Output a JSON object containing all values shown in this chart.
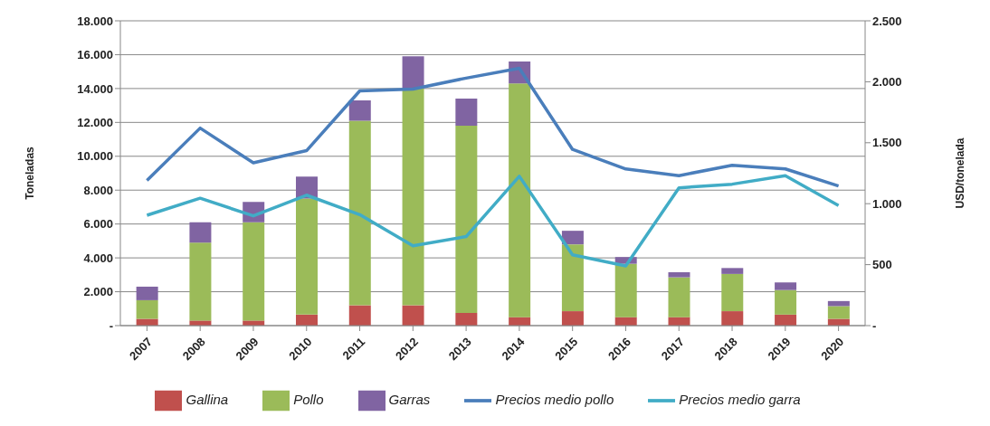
{
  "chart_data": {
    "type": "bar",
    "stacked": true,
    "ylabel": "Toneladas",
    "y2label": "USD/tonelada",
    "categories": [
      "2007",
      "2008",
      "2009",
      "2010",
      "2011",
      "2012",
      "2013",
      "2014",
      "2015",
      "2016",
      "2017",
      "2018",
      "2019",
      "2020"
    ],
    "series": [
      {
        "name": "Gallina",
        "color": "#c0504d",
        "values": [
          400,
          300,
          300,
          650,
          1200,
          1200,
          750,
          500,
          850,
          500,
          500,
          850,
          650,
          400
        ]
      },
      {
        "name": "Pollo",
        "color": "#9bbb59",
        "values": [
          1100,
          4600,
          5800,
          6850,
          10900,
          12800,
          11050,
          13800,
          3950,
          3150,
          2350,
          2200,
          1450,
          750
        ]
      },
      {
        "name": "Garras",
        "color": "#8064a2",
        "values": [
          800,
          1200,
          1200,
          1300,
          1200,
          1900,
          1600,
          1300,
          800,
          400,
          300,
          350,
          450,
          300
        ]
      },
      {
        "name": "Precios medio pollo",
        "type": "line",
        "axis": "y2",
        "color": "#4a7ebb",
        "values": [
          1190,
          1620,
          1335,
          1435,
          1925,
          1940,
          2030,
          2110,
          1445,
          1285,
          1230,
          1315,
          1285,
          1145
        ]
      },
      {
        "name": "Precios medio garra",
        "type": "line",
        "axis": "y2",
        "color": "#41acc6",
        "values": [
          905,
          1045,
          900,
          1070,
          910,
          655,
          730,
          1225,
          580,
          490,
          1130,
          1160,
          1230,
          985
        ]
      }
    ],
    "ylim": [
      0,
      18000
    ],
    "yticks": [
      {
        "value": 0,
        "label": "-"
      },
      {
        "value": 2000,
        "label": "2.000"
      },
      {
        "value": 4000,
        "label": "4.000"
      },
      {
        "value": 6000,
        "label": "6.000"
      },
      {
        "value": 8000,
        "label": "8.000"
      },
      {
        "value": 10000,
        "label": "10.000"
      },
      {
        "value": 12000,
        "label": "12.000"
      },
      {
        "value": 14000,
        "label": "14.000"
      },
      {
        "value": 16000,
        "label": "16.000"
      },
      {
        "value": 18000,
        "label": "18.000"
      }
    ],
    "y2lim": [
      0,
      2500
    ],
    "y2ticks": [
      {
        "value": 0,
        "label": "-"
      },
      500,
      {
        "value": 1000,
        "label": "1.000"
      },
      {
        "value": 1500,
        "label": "1.500"
      },
      {
        "value": 2000,
        "label": "2.000"
      },
      {
        "value": 2500,
        "label": "2.500"
      }
    ],
    "grid": "y",
    "legend": "bottom",
    "marker": "none",
    "line_style": "solid"
  }
}
